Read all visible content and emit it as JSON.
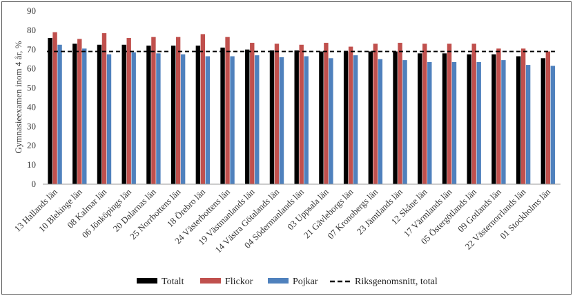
{
  "chart_data": {
    "type": "bar",
    "ylabel": "Gymnasieexamen inom 4 år, %",
    "ylim": [
      0,
      90
    ],
    "yticks": [
      0,
      10,
      20,
      30,
      40,
      50,
      60,
      70,
      80,
      90
    ],
    "grid": false,
    "legend_position": "bottom",
    "categories": [
      "13 Hallands län",
      "10 Blekinge län",
      "08 Kalmar län",
      "06 Jönköpings län",
      "20 Dalarnas län",
      "25 Norrbottens län",
      "18 Örebro län",
      "24 Västerbottens län",
      "19 Västmanlands län",
      "14 Västra Götalands län",
      "04 Södermanlands län",
      "03 Uppsala län",
      "21 Gävleborgs län",
      "07 Kronobergs län",
      "23 Jämtlands län",
      "12 Skåne län",
      "17 Värmlands län",
      "05 Östergötlands län",
      "09 Gotlands län",
      "22 Västernorrlands län",
      "01 Stockholms län"
    ],
    "series": [
      {
        "name": "Totalt",
        "color": "#000000",
        "values": [
          76,
          73,
          72.5,
          72.5,
          72,
          72,
          72,
          71,
          70,
          69.5,
          69.5,
          69,
          69,
          69,
          69,
          68,
          68,
          67.5,
          67.5,
          66.5,
          65.5
        ]
      },
      {
        "name": "Flickor",
        "color": "#c0504d",
        "values": [
          79,
          75.5,
          78.5,
          76,
          76.5,
          76.5,
          78,
          76.5,
          73.5,
          73,
          72.5,
          73.5,
          71.5,
          73,
          73.5,
          73,
          73,
          73,
          70.5,
          70.5,
          69
        ]
      },
      {
        "name": "Pojkar",
        "color": "#4f81bd",
        "values": [
          72.5,
          70.5,
          67.5,
          68.5,
          68,
          67.5,
          66.5,
          66.5,
          67,
          66,
          66.5,
          65.5,
          67,
          65,
          64.5,
          63.5,
          63.5,
          63.5,
          64.5,
          62,
          61.5
        ]
      }
    ],
    "reference_line": {
      "name": "Riksgenomsnitt, total",
      "value": 69,
      "style": "dashed",
      "color": "#000000"
    }
  }
}
